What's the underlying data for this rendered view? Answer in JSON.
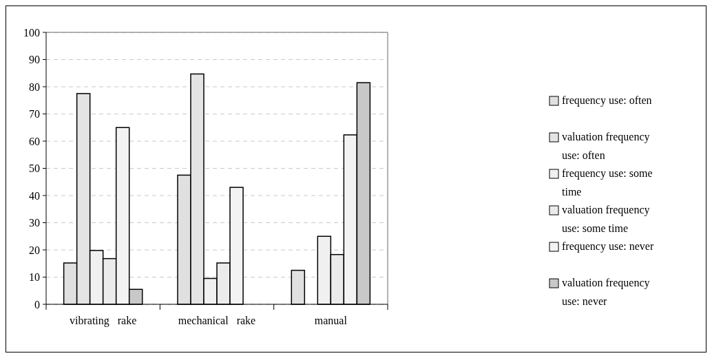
{
  "chart_data": {
    "type": "bar",
    "categories": [
      "vibrating   rake",
      "mechanical   rake",
      "manual"
    ],
    "series": [
      {
        "name": "frequency use: often",
        "color": "#e0e0e0",
        "values": [
          15.2,
          47.5,
          12.5
        ]
      },
      {
        "name": "valuation frequency use: often",
        "color": "#e4e4e4",
        "values": [
          77.5,
          84.7,
          null
        ]
      },
      {
        "name": "frequency use: some time",
        "color": "#f0f0f0",
        "values": [
          19.8,
          9.5,
          25
        ]
      },
      {
        "name": "valuation frequency use: some time",
        "color": "#ebebeb",
        "values": [
          16.8,
          15.2,
          18.3
        ]
      },
      {
        "name": "frequency use: never",
        "color": "#f3f3f3",
        "values": [
          65,
          43,
          62.3
        ]
      },
      {
        "name": "valuation frequency use: never",
        "color": "#c8c8c8",
        "values": [
          5.5,
          null,
          81.5
        ]
      }
    ],
    "ylim": [
      0,
      100
    ],
    "yticks": [
      0,
      10,
      20,
      30,
      40,
      50,
      60,
      70,
      80,
      90,
      100
    ],
    "grid": "y",
    "legend": "right"
  }
}
